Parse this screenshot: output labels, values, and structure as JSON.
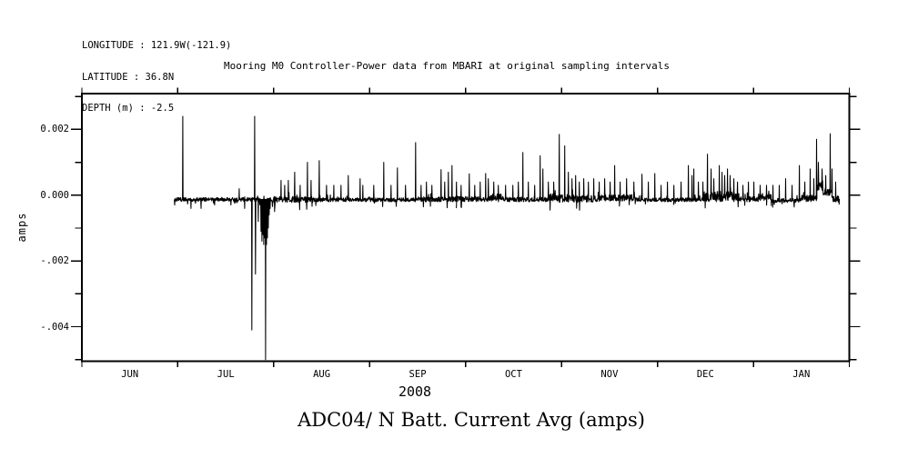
{
  "metadata": {
    "longitude": "LONGITUDE : 121.9W(-121.9)",
    "latitude": "LATITUDE : 36.8N",
    "depth": "DEPTH (m) : -2.5"
  },
  "title": "Mooring M0 Controller-Power data from MBARI at original sampling intervals",
  "caption": "ADC04/ N Batt. Current Avg (amps)",
  "chart_data": {
    "type": "line",
    "title": "Mooring M0 Controller-Power data from MBARI at original sampling intervals",
    "series_name": "ADC04/ N Batt. Current Avg",
    "ylabel": "amps",
    "xlabel": "2008",
    "line_color": "#000000",
    "background_color": "#ffffff",
    "grid": false,
    "legend": false,
    "x_unit": "months from Jun 1 2008 (0=JUN1 ... 8=FEB1)",
    "x_categories": [
      "JUN",
      "JUL",
      "AUG",
      "SEP",
      "OCT",
      "NOV",
      "DEC",
      "JAN"
    ],
    "x_tick_positions": [
      0,
      1,
      2,
      3,
      4,
      5,
      6,
      7,
      8
    ],
    "xlim_months": [
      0,
      8
    ],
    "ylim": [
      -0.00505,
      0.00309
    ],
    "y_major_ticks": [
      {
        "value": 0.002,
        "label": "0.002"
      },
      {
        "value": 0.0,
        "label": "0.000"
      },
      {
        "value": -0.002,
        "label": "-.002"
      },
      {
        "value": -0.004,
        "label": "-.004"
      }
    ],
    "y_minor_ticks": [
      0.003,
      0.001,
      -0.001,
      -0.003,
      -0.005
    ],
    "data_extent_months": [
      0.967,
      7.9
    ],
    "baseline_note": "noisy band slightly below zero amps; segments give [x0,x1,base_amps,noise_amp_amps]",
    "segments_x0_x1_base_amp": [
      [
        0.967,
        1.981,
        -0.00013,
        6e-05
      ],
      [
        1.981,
        2.408,
        -0.00013,
        9e-05
      ],
      [
        2.408,
        3.498,
        -0.00014,
        6e-05
      ],
      [
        3.498,
        4.256,
        -0.00012,
        8e-05
      ],
      [
        4.256,
        4.398,
        -8e-05,
        0.00012
      ],
      [
        4.398,
        4.872,
        -0.00013,
        7e-05
      ],
      [
        4.872,
        4.938,
        -6e-05,
        0.00012
      ],
      [
        4.938,
        5.393,
        -0.0001,
        0.00012
      ],
      [
        5.393,
        5.773,
        -8e-05,
        0.0001
      ],
      [
        5.773,
        6.483,
        -0.00014,
        6e-05
      ],
      [
        6.483,
        6.834,
        -4e-05,
        0.00016
      ],
      [
        6.834,
        7.052,
        -0.00012,
        8e-05
      ],
      [
        7.052,
        7.194,
        -6e-05,
        0.0001
      ],
      [
        7.194,
        7.479,
        -0.00016,
        6e-05
      ],
      [
        7.479,
        7.659,
        -0.0001,
        0.0001
      ],
      [
        7.659,
        7.725,
        0.0003,
        0.00015
      ],
      [
        7.725,
        7.82,
        8e-05,
        0.00012
      ],
      [
        7.82,
        7.9,
        -0.00012,
        0.0001
      ]
    ],
    "spikes_x_v": [
      [
        0.967,
        -0.0003
      ],
      [
        1.052,
        0.0024
      ],
      [
        1.137,
        -0.0004
      ],
      [
        1.242,
        -0.0004
      ],
      [
        1.384,
        -0.0003
      ],
      [
        1.554,
        -0.0003
      ],
      [
        1.64,
        0.0002
      ],
      [
        1.697,
        -0.0004
      ],
      [
        1.772,
        -0.0041
      ],
      [
        1.801,
        0.0024
      ],
      [
        1.81,
        -0.0024
      ],
      [
        1.839,
        -0.0008
      ],
      [
        1.867,
        -0.0011
      ],
      [
        1.877,
        -0.0014
      ],
      [
        1.886,
        -0.0012
      ],
      [
        1.896,
        -0.0015
      ],
      [
        1.905,
        -0.0013
      ],
      [
        1.915,
        -0.005
      ],
      [
        1.924,
        -0.0015
      ],
      [
        1.934,
        -0.0013
      ],
      [
        1.943,
        -0.001
      ],
      [
        1.953,
        -0.0006
      ],
      [
        1.962,
        -0.0004
      ],
      [
        2.009,
        -0.0005
      ],
      [
        2.076,
        0.00045
      ],
      [
        2.114,
        0.0003
      ],
      [
        2.152,
        0.00045
      ],
      [
        2.218,
        0.0007
      ],
      [
        2.275,
        0.0003
      ],
      [
        2.351,
        0.001
      ],
      [
        2.389,
        0.00045
      ],
      [
        2.474,
        0.00105
      ],
      [
        2.55,
        0.0003
      ],
      [
        2.626,
        0.0003
      ],
      [
        2.701,
        0.0003
      ],
      [
        2.777,
        0.0006
      ],
      [
        2.9,
        0.0005
      ],
      [
        2.929,
        0.0003
      ],
      [
        3.043,
        0.0003
      ],
      [
        3.147,
        0.001
      ],
      [
        3.223,
        0.0003
      ],
      [
        3.289,
        0.00083
      ],
      [
        3.374,
        0.0003
      ],
      [
        3.479,
        0.0016
      ],
      [
        3.536,
        0.0003
      ],
      [
        3.592,
        0.0004
      ],
      [
        3.649,
        0.0003
      ],
      [
        3.744,
        0.00078
      ],
      [
        3.782,
        0.0004
      ],
      [
        3.82,
        0.0007
      ],
      [
        3.858,
        0.0009
      ],
      [
        3.905,
        0.0004
      ],
      [
        3.953,
        0.0003
      ],
      [
        4.038,
        0.00065
      ],
      [
        4.095,
        0.0003
      ],
      [
        4.152,
        0.0004
      ],
      [
        4.209,
        0.00066
      ],
      [
        4.237,
        0.0005
      ],
      [
        4.294,
        0.0004
      ],
      [
        4.341,
        0.0003
      ],
      [
        4.417,
        0.0003
      ],
      [
        4.493,
        0.0003
      ],
      [
        4.55,
        0.0004
      ],
      [
        4.597,
        0.0013
      ],
      [
        4.654,
        0.0004
      ],
      [
        4.72,
        0.0003
      ],
      [
        4.777,
        0.0012
      ],
      [
        4.806,
        0.0008
      ],
      [
        4.863,
        0.0004
      ],
      [
        4.919,
        0.0004
      ],
      [
        4.976,
        0.00185
      ],
      [
        5.033,
        0.0015
      ],
      [
        5.071,
        0.0007
      ],
      [
        5.109,
        0.0005
      ],
      [
        5.147,
        0.0006
      ],
      [
        5.185,
        0.0004
      ],
      [
        5.232,
        0.0005
      ],
      [
        5.28,
        0.0004
      ],
      [
        5.336,
        0.0005
      ],
      [
        5.393,
        0.0004
      ],
      [
        5.45,
        0.0005
      ],
      [
        5.507,
        0.0004
      ],
      [
        5.554,
        0.0009
      ],
      [
        5.611,
        0.0004
      ],
      [
        5.678,
        0.0005
      ],
      [
        5.754,
        0.0004
      ],
      [
        5.839,
        0.00064
      ],
      [
        5.905,
        0.0004
      ],
      [
        5.972,
        0.00066
      ],
      [
        6.038,
        0.0003
      ],
      [
        6.104,
        0.0004
      ],
      [
        6.171,
        0.0003
      ],
      [
        6.246,
        0.0004
      ],
      [
        6.322,
        0.0009
      ],
      [
        6.36,
        0.0006
      ],
      [
        6.379,
        0.0008
      ],
      [
        6.427,
        0.0004
      ],
      [
        6.474,
        0.0004
      ],
      [
        6.521,
        0.00125
      ],
      [
        6.559,
        0.0008
      ],
      [
        6.588,
        0.0005
      ],
      [
        6.645,
        0.0009
      ],
      [
        6.673,
        0.0007
      ],
      [
        6.701,
        0.0006
      ],
      [
        6.73,
        0.0008
      ],
      [
        6.758,
        0.0006
      ],
      [
        6.796,
        0.0005
      ],
      [
        6.834,
        0.0004
      ],
      [
        6.891,
        0.0003
      ],
      [
        6.948,
        0.0004
      ],
      [
        7.005,
        0.0004
      ],
      [
        7.071,
        0.0003
      ],
      [
        7.137,
        0.0003
      ],
      [
        7.204,
        0.0003
      ],
      [
        7.27,
        0.0003
      ],
      [
        7.336,
        0.0005
      ],
      [
        7.403,
        0.0003
      ],
      [
        7.479,
        0.0009
      ],
      [
        7.536,
        0.0004
      ],
      [
        7.592,
        0.0008
      ],
      [
        7.63,
        0.0005
      ],
      [
        7.659,
        0.0017
      ],
      [
        7.678,
        0.001
      ],
      [
        7.716,
        0.0008
      ],
      [
        7.754,
        0.0006
      ],
      [
        7.801,
        0.00187
      ],
      [
        7.82,
        0.0008
      ],
      [
        7.858,
        0.0004
      ]
    ]
  }
}
